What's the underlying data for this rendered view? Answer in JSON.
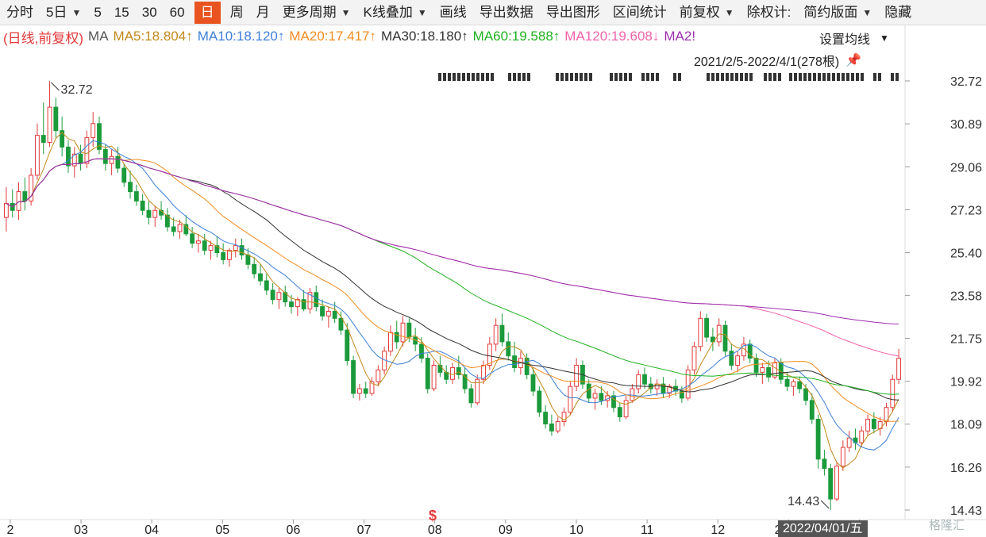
{
  "toolbar": {
    "items": [
      {
        "label": "分时"
      },
      {
        "label": "5日",
        "dropdown": true
      },
      {
        "label": "5"
      },
      {
        "label": "15"
      },
      {
        "label": "30"
      },
      {
        "label": "60"
      },
      {
        "label": "日",
        "active": true
      },
      {
        "label": "周"
      },
      {
        "label": "月"
      },
      {
        "label": "更多周期",
        "dropdown": true
      },
      {
        "label": "K线叠加",
        "dropdown": true
      },
      {
        "label": "画线"
      },
      {
        "label": "导出数据"
      },
      {
        "label": "导出图形"
      },
      {
        "label": "区间统计"
      },
      {
        "label": "前复权",
        "dropdown": true
      },
      {
        "label": "除权计:"
      },
      {
        "label": "简约版面",
        "dropdown": true
      },
      {
        "label": "隐藏"
      }
    ],
    "accent": "#e8531f"
  },
  "legend": {
    "prefix": "(日线,前复权)",
    "ma_label": "MA",
    "items": [
      {
        "text": "MA5:18.804↑",
        "color": "#c08a1a"
      },
      {
        "text": "MA10:18.120↑",
        "color": "#3d7fd8"
      },
      {
        "text": "MA20:17.417↑",
        "color": "#f08c1e"
      },
      {
        "text": "MA30:18.180↑",
        "color": "#333333"
      },
      {
        "text": "MA60:19.588↑",
        "color": "#1fb21f"
      },
      {
        "text": "MA120:19.608↓",
        "color": "#ee62a9"
      },
      {
        "text": "MA2!",
        "color": "#9b2fae"
      }
    ]
  },
  "settings_label": "设置均线",
  "date_range": "2021/2/5-2022/4/1(278根)",
  "cursor_date": "2022/04/01/五",
  "watermark": "格隆汇",
  "s_marker": "$",
  "chart_data": {
    "type": "candlestick",
    "yticks": [
      "32.72",
      "30.89",
      "29.06",
      "27.23",
      "25.40",
      "23.58",
      "21.75",
      "19.92",
      "18.09",
      "16.26",
      "14.43"
    ],
    "ylim": [
      14.43,
      32.72
    ],
    "x_ticks": [
      "2",
      "03",
      "04",
      "05",
      "06",
      "07",
      "08",
      "09",
      "10",
      "11",
      "12",
      "2022",
      "0"
    ],
    "annotations": [
      {
        "text": "32.72",
        "kind": "high"
      },
      {
        "text": "14.43",
        "kind": "low"
      }
    ],
    "colors": {
      "up": "#e23a3a",
      "down": "#1b9a3b"
    },
    "candles": [
      {
        "o": 26.9,
        "h": 28.2,
        "l": 26.3,
        "c": 27.5
      },
      {
        "o": 27.5,
        "h": 28.1,
        "l": 26.9,
        "c": 27.2
      },
      {
        "o": 27.2,
        "h": 28.4,
        "l": 26.8,
        "c": 28.0
      },
      {
        "o": 28.0,
        "h": 28.6,
        "l": 27.2,
        "c": 27.6
      },
      {
        "o": 27.6,
        "h": 29.0,
        "l": 27.4,
        "c": 28.7
      },
      {
        "o": 28.7,
        "h": 30.9,
        "l": 28.5,
        "c": 30.4
      },
      {
        "o": 30.4,
        "h": 31.8,
        "l": 29.6,
        "c": 30.1
      },
      {
        "o": 30.1,
        "h": 32.72,
        "l": 29.9,
        "c": 31.6
      },
      {
        "o": 31.6,
        "h": 32.0,
        "l": 30.3,
        "c": 30.6
      },
      {
        "o": 30.6,
        "h": 31.2,
        "l": 29.5,
        "c": 29.9
      },
      {
        "o": 29.9,
        "h": 30.2,
        "l": 28.8,
        "c": 29.1
      },
      {
        "o": 29.1,
        "h": 29.9,
        "l": 28.6,
        "c": 29.6
      },
      {
        "o": 29.6,
        "h": 30.0,
        "l": 28.9,
        "c": 29.2
      },
      {
        "o": 29.2,
        "h": 30.6,
        "l": 29.0,
        "c": 30.3
      },
      {
        "o": 30.3,
        "h": 31.4,
        "l": 29.9,
        "c": 30.9
      },
      {
        "o": 30.9,
        "h": 31.2,
        "l": 29.6,
        "c": 29.8
      },
      {
        "o": 29.8,
        "h": 30.0,
        "l": 28.9,
        "c": 29.2
      },
      {
        "o": 29.2,
        "h": 29.8,
        "l": 28.7,
        "c": 29.5
      },
      {
        "o": 29.5,
        "h": 29.9,
        "l": 28.8,
        "c": 29.0
      },
      {
        "o": 29.0,
        "h": 29.2,
        "l": 28.2,
        "c": 28.4
      },
      {
        "o": 28.4,
        "h": 28.9,
        "l": 27.7,
        "c": 28.0
      },
      {
        "o": 28.0,
        "h": 28.3,
        "l": 27.4,
        "c": 27.6
      },
      {
        "o": 27.6,
        "h": 27.9,
        "l": 27.0,
        "c": 27.2
      },
      {
        "o": 27.2,
        "h": 27.6,
        "l": 26.6,
        "c": 26.9
      },
      {
        "o": 26.9,
        "h": 27.4,
        "l": 26.5,
        "c": 27.2
      },
      {
        "o": 27.2,
        "h": 27.6,
        "l": 26.8,
        "c": 27.0
      },
      {
        "o": 27.0,
        "h": 27.3,
        "l": 26.3,
        "c": 26.5
      },
      {
        "o": 26.5,
        "h": 26.9,
        "l": 26.1,
        "c": 26.3
      },
      {
        "o": 26.3,
        "h": 26.8,
        "l": 26.0,
        "c": 26.6
      },
      {
        "o": 26.6,
        "h": 27.0,
        "l": 26.1,
        "c": 26.2
      },
      {
        "o": 26.2,
        "h": 26.5,
        "l": 25.6,
        "c": 25.8
      },
      {
        "o": 25.8,
        "h": 26.2,
        "l": 25.4,
        "c": 25.9
      },
      {
        "o": 25.9,
        "h": 26.2,
        "l": 25.3,
        "c": 25.5
      },
      {
        "o": 25.5,
        "h": 25.9,
        "l": 25.1,
        "c": 25.7
      },
      {
        "o": 25.7,
        "h": 26.1,
        "l": 25.2,
        "c": 25.4
      },
      {
        "o": 25.4,
        "h": 25.8,
        "l": 24.9,
        "c": 25.1
      },
      {
        "o": 25.1,
        "h": 25.6,
        "l": 24.8,
        "c": 25.5
      },
      {
        "o": 25.5,
        "h": 26.0,
        "l": 25.2,
        "c": 25.7
      },
      {
        "o": 25.7,
        "h": 26.0,
        "l": 25.1,
        "c": 25.3
      },
      {
        "o": 25.3,
        "h": 25.6,
        "l": 24.7,
        "c": 24.9
      },
      {
        "o": 24.9,
        "h": 25.2,
        "l": 24.3,
        "c": 24.5
      },
      {
        "o": 24.5,
        "h": 24.9,
        "l": 24.0,
        "c": 24.2
      },
      {
        "o": 24.2,
        "h": 24.5,
        "l": 23.6,
        "c": 23.8
      },
      {
        "o": 23.8,
        "h": 24.1,
        "l": 23.2,
        "c": 23.4
      },
      {
        "o": 23.4,
        "h": 23.9,
        "l": 23.0,
        "c": 23.7
      },
      {
        "o": 23.7,
        "h": 24.0,
        "l": 23.1,
        "c": 23.3
      },
      {
        "o": 23.3,
        "h": 23.6,
        "l": 22.8,
        "c": 23.1
      },
      {
        "o": 23.1,
        "h": 23.5,
        "l": 22.7,
        "c": 23.4
      },
      {
        "o": 23.4,
        "h": 23.8,
        "l": 22.9,
        "c": 23.0
      },
      {
        "o": 23.0,
        "h": 23.9,
        "l": 22.8,
        "c": 23.7
      },
      {
        "o": 23.7,
        "h": 24.0,
        "l": 22.9,
        "c": 23.1
      },
      {
        "o": 23.1,
        "h": 23.4,
        "l": 22.5,
        "c": 22.7
      },
      {
        "o": 22.7,
        "h": 23.1,
        "l": 22.2,
        "c": 22.9
      },
      {
        "o": 22.9,
        "h": 23.3,
        "l": 22.4,
        "c": 22.6
      },
      {
        "o": 22.6,
        "h": 22.9,
        "l": 21.9,
        "c": 22.1
      },
      {
        "o": 22.1,
        "h": 22.4,
        "l": 20.6,
        "c": 20.8
      },
      {
        "o": 20.8,
        "h": 21.0,
        "l": 19.2,
        "c": 19.4
      },
      {
        "o": 19.4,
        "h": 19.8,
        "l": 19.1,
        "c": 19.6
      },
      {
        "o": 19.6,
        "h": 19.9,
        "l": 19.2,
        "c": 19.4
      },
      {
        "o": 19.4,
        "h": 20.1,
        "l": 19.3,
        "c": 19.9
      },
      {
        "o": 19.9,
        "h": 20.6,
        "l": 19.7,
        "c": 20.4
      },
      {
        "o": 20.4,
        "h": 21.4,
        "l": 20.2,
        "c": 21.2
      },
      {
        "o": 21.2,
        "h": 22.3,
        "l": 21.0,
        "c": 22.0
      },
      {
        "o": 22.0,
        "h": 22.5,
        "l": 21.3,
        "c": 21.6
      },
      {
        "o": 21.6,
        "h": 22.7,
        "l": 21.4,
        "c": 22.4
      },
      {
        "o": 22.4,
        "h": 22.6,
        "l": 21.6,
        "c": 21.8
      },
      {
        "o": 21.8,
        "h": 22.2,
        "l": 21.2,
        "c": 21.5
      },
      {
        "o": 21.5,
        "h": 21.8,
        "l": 20.7,
        "c": 20.9
      },
      {
        "o": 20.9,
        "h": 21.1,
        "l": 19.4,
        "c": 19.6
      },
      {
        "o": 19.6,
        "h": 20.8,
        "l": 19.5,
        "c": 20.6
      },
      {
        "o": 20.6,
        "h": 21.0,
        "l": 20.1,
        "c": 20.3
      },
      {
        "o": 20.3,
        "h": 20.6,
        "l": 19.8,
        "c": 20.0
      },
      {
        "o": 20.0,
        "h": 20.7,
        "l": 19.8,
        "c": 20.5
      },
      {
        "o": 20.5,
        "h": 21.0,
        "l": 20.0,
        "c": 20.2
      },
      {
        "o": 20.2,
        "h": 20.5,
        "l": 19.4,
        "c": 19.6
      },
      {
        "o": 19.6,
        "h": 19.8,
        "l": 18.8,
        "c": 19.0
      },
      {
        "o": 19.0,
        "h": 20.2,
        "l": 18.9,
        "c": 20.0
      },
      {
        "o": 20.0,
        "h": 20.8,
        "l": 19.8,
        "c": 20.6
      },
      {
        "o": 20.6,
        "h": 21.8,
        "l": 20.4,
        "c": 21.5
      },
      {
        "o": 21.5,
        "h": 22.6,
        "l": 21.2,
        "c": 22.3
      },
      {
        "o": 22.3,
        "h": 22.8,
        "l": 21.4,
        "c": 21.6
      },
      {
        "o": 21.6,
        "h": 22.0,
        "l": 20.8,
        "c": 21.0
      },
      {
        "o": 21.0,
        "h": 21.6,
        "l": 20.3,
        "c": 20.5
      },
      {
        "o": 20.5,
        "h": 21.2,
        "l": 20.2,
        "c": 20.9
      },
      {
        "o": 20.9,
        "h": 21.1,
        "l": 20.0,
        "c": 20.2
      },
      {
        "o": 20.2,
        "h": 20.5,
        "l": 19.3,
        "c": 19.5
      },
      {
        "o": 19.5,
        "h": 19.7,
        "l": 18.4,
        "c": 18.6
      },
      {
        "o": 18.6,
        "h": 18.9,
        "l": 17.9,
        "c": 18.1
      },
      {
        "o": 18.1,
        "h": 18.5,
        "l": 17.6,
        "c": 17.8
      },
      {
        "o": 17.8,
        "h": 18.4,
        "l": 17.7,
        "c": 18.2
      },
      {
        "o": 18.2,
        "h": 18.8,
        "l": 18.0,
        "c": 18.6
      },
      {
        "o": 18.6,
        "h": 19.9,
        "l": 18.5,
        "c": 19.7
      },
      {
        "o": 19.7,
        "h": 20.9,
        "l": 19.5,
        "c": 20.6
      },
      {
        "o": 20.6,
        "h": 20.8,
        "l": 19.6,
        "c": 19.8
      },
      {
        "o": 19.8,
        "h": 20.0,
        "l": 19.0,
        "c": 19.2
      },
      {
        "o": 19.2,
        "h": 19.6,
        "l": 18.7,
        "c": 19.4
      },
      {
        "o": 19.4,
        "h": 19.7,
        "l": 18.9,
        "c": 19.1
      },
      {
        "o": 19.1,
        "h": 19.5,
        "l": 18.8,
        "c": 19.3
      },
      {
        "o": 19.3,
        "h": 19.5,
        "l": 18.6,
        "c": 18.8
      },
      {
        "o": 18.8,
        "h": 19.0,
        "l": 18.2,
        "c": 18.4
      },
      {
        "o": 18.4,
        "h": 19.3,
        "l": 18.3,
        "c": 19.1
      },
      {
        "o": 19.1,
        "h": 19.8,
        "l": 19.0,
        "c": 19.6
      },
      {
        "o": 19.6,
        "h": 20.4,
        "l": 19.4,
        "c": 20.2
      },
      {
        "o": 20.2,
        "h": 20.5,
        "l": 19.6,
        "c": 19.8
      },
      {
        "o": 19.8,
        "h": 20.1,
        "l": 19.4,
        "c": 19.6
      },
      {
        "o": 19.6,
        "h": 20.0,
        "l": 19.3,
        "c": 19.8
      },
      {
        "o": 19.8,
        "h": 20.1,
        "l": 19.2,
        "c": 19.4
      },
      {
        "o": 19.4,
        "h": 19.8,
        "l": 19.2,
        "c": 19.7
      },
      {
        "o": 19.7,
        "h": 20.0,
        "l": 19.3,
        "c": 19.5
      },
      {
        "o": 19.5,
        "h": 19.7,
        "l": 19.0,
        "c": 19.2
      },
      {
        "o": 19.2,
        "h": 20.6,
        "l": 19.1,
        "c": 20.4
      },
      {
        "o": 20.4,
        "h": 21.6,
        "l": 20.2,
        "c": 21.4
      },
      {
        "o": 21.4,
        "h": 22.9,
        "l": 21.2,
        "c": 22.6
      },
      {
        "o": 22.6,
        "h": 22.8,
        "l": 21.6,
        "c": 21.8
      },
      {
        "o": 21.8,
        "h": 22.2,
        "l": 21.2,
        "c": 21.6
      },
      {
        "o": 21.6,
        "h": 22.6,
        "l": 21.4,
        "c": 22.3
      },
      {
        "o": 22.3,
        "h": 22.5,
        "l": 21.0,
        "c": 21.2
      },
      {
        "o": 21.2,
        "h": 21.5,
        "l": 20.4,
        "c": 20.6
      },
      {
        "o": 20.6,
        "h": 21.2,
        "l": 20.3,
        "c": 21.0
      },
      {
        "o": 21.0,
        "h": 21.8,
        "l": 20.8,
        "c": 21.5
      },
      {
        "o": 21.5,
        "h": 21.7,
        "l": 20.7,
        "c": 20.9
      },
      {
        "o": 20.9,
        "h": 21.1,
        "l": 20.1,
        "c": 20.3
      },
      {
        "o": 20.3,
        "h": 20.7,
        "l": 19.8,
        "c": 20.5
      },
      {
        "o": 20.5,
        "h": 20.8,
        "l": 19.9,
        "c": 20.1
      },
      {
        "o": 20.1,
        "h": 20.9,
        "l": 20.0,
        "c": 20.7
      },
      {
        "o": 20.7,
        "h": 20.9,
        "l": 19.8,
        "c": 20.0
      },
      {
        "o": 20.0,
        "h": 20.3,
        "l": 19.5,
        "c": 19.7
      },
      {
        "o": 19.7,
        "h": 20.0,
        "l": 19.3,
        "c": 19.9
      },
      {
        "o": 19.9,
        "h": 20.1,
        "l": 19.4,
        "c": 19.6
      },
      {
        "o": 19.6,
        "h": 19.8,
        "l": 18.9,
        "c": 19.1
      },
      {
        "o": 19.1,
        "h": 19.4,
        "l": 18.1,
        "c": 18.3
      },
      {
        "o": 18.3,
        "h": 18.5,
        "l": 16.2,
        "c": 16.6
      },
      {
        "o": 16.6,
        "h": 17.0,
        "l": 15.9,
        "c": 16.2
      },
      {
        "o": 16.2,
        "h": 16.4,
        "l": 14.43,
        "c": 14.9
      },
      {
        "o": 14.9,
        "h": 16.5,
        "l": 14.8,
        "c": 16.3
      },
      {
        "o": 16.3,
        "h": 17.4,
        "l": 16.1,
        "c": 17.1
      },
      {
        "o": 17.1,
        "h": 17.8,
        "l": 16.9,
        "c": 17.5
      },
      {
        "o": 17.5,
        "h": 17.9,
        "l": 17.0,
        "c": 17.3
      },
      {
        "o": 17.3,
        "h": 18.0,
        "l": 17.1,
        "c": 17.8
      },
      {
        "o": 17.8,
        "h": 18.5,
        "l": 17.6,
        "c": 18.3
      },
      {
        "o": 18.3,
        "h": 18.6,
        "l": 17.7,
        "c": 17.9
      },
      {
        "o": 17.9,
        "h": 18.4,
        "l": 17.6,
        "c": 18.2
      },
      {
        "o": 18.2,
        "h": 19.0,
        "l": 18.0,
        "c": 18.8
      },
      {
        "o": 18.8,
        "h": 20.2,
        "l": 18.6,
        "c": 20.0
      },
      {
        "o": 20.0,
        "h": 21.3,
        "l": 19.8,
        "c": 20.9
      }
    ]
  }
}
